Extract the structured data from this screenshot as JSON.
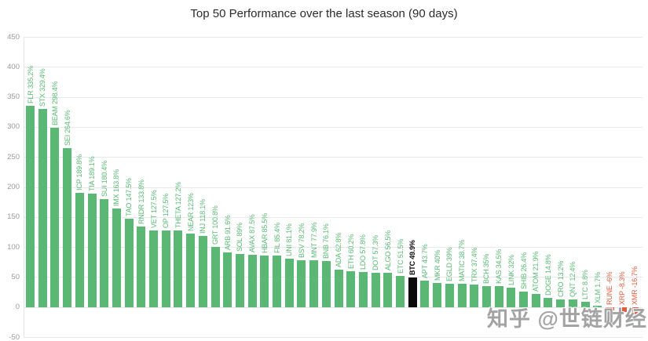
{
  "watermark": "知乎 @世链财经",
  "colors": {
    "positive_bar": "#5ab874",
    "negative_bar": "#df5c3e",
    "highlight_bar": "#0b0b0b",
    "grid_line": "#e9e9e9",
    "axis_text": "#9a9a9a",
    "title_text": "#2b2b2b",
    "background": "#ffffff"
  },
  "chart_data": {
    "type": "bar",
    "title": "Top 50 Performance over the last season (90 days)",
    "xlabel": "",
    "ylabel": "",
    "unit": "%",
    "ylim": [
      -50,
      450
    ],
    "yticks": [
      450,
      400,
      350,
      300,
      250,
      200,
      150,
      100,
      50,
      0,
      -50
    ],
    "grid": true,
    "legend": false,
    "highlighted_category": "BTC",
    "bars": [
      {
        "label": "FLR",
        "value": 335.2,
        "display": "FLR 335.2%"
      },
      {
        "label": "STX",
        "value": 329.4,
        "display": "STX 329.4%"
      },
      {
        "label": "BEAM",
        "value": 298.4,
        "display": "BEAM 298.4%"
      },
      {
        "label": "SEI",
        "value": 264.6,
        "display": "SEI 264.6%"
      },
      {
        "label": "ICP",
        "value": 189.8,
        "display": "ICP 189.8%"
      },
      {
        "label": "TIA",
        "value": 189.1,
        "display": "TIA 189.1%"
      },
      {
        "label": "SUI",
        "value": 180.4,
        "display": "SUI 180.4%"
      },
      {
        "label": "IMX",
        "value": 163.8,
        "display": "IMX 163.8%"
      },
      {
        "label": "TAO",
        "value": 147.5,
        "display": "TAO 147.5%"
      },
      {
        "label": "RNDR",
        "value": 133.8,
        "display": "RNDR 133.8%"
      },
      {
        "label": "VET",
        "value": 127.5,
        "display": "VET 127.5%"
      },
      {
        "label": "OP",
        "value": 127.5,
        "display": "OP 127.5%"
      },
      {
        "label": "THETA",
        "value": 127.2,
        "display": "THETA 127.2%"
      },
      {
        "label": "NEAR",
        "value": 123,
        "display": "NEAR 123%"
      },
      {
        "label": "INJ",
        "value": 118.1,
        "display": "INJ 118.1%"
      },
      {
        "label": "GRT",
        "value": 100.8,
        "display": "GRT 100.8%"
      },
      {
        "label": "ARB",
        "value": 91.6,
        "display": "ARB 91.6%"
      },
      {
        "label": "SOL",
        "value": 89,
        "display": "SOL 89%"
      },
      {
        "label": "AVAX",
        "value": 87.5,
        "display": "AVAX 87.5%"
      },
      {
        "label": "HBAR",
        "value": 85.5,
        "display": "HBAR 85.5%"
      },
      {
        "label": "FIL",
        "value": 85.4,
        "display": "FIL 85.4%"
      },
      {
        "label": "UNI",
        "value": 81.1,
        "display": "UNI 81.1%"
      },
      {
        "label": "BSV",
        "value": 78.2,
        "display": "BSV 78.2%"
      },
      {
        "label": "MNT",
        "value": 77.9,
        "display": "MNT 77.9%"
      },
      {
        "label": "BNB",
        "value": 76.1,
        "display": "BNB 76.1%"
      },
      {
        "label": "ADA",
        "value": 62.8,
        "display": "ADA 62.8%"
      },
      {
        "label": "ETH",
        "value": 60.2,
        "display": "ETH 60.2%"
      },
      {
        "label": "LDO",
        "value": 57.8,
        "display": "LDO 57.8%"
      },
      {
        "label": "DOT",
        "value": 57.3,
        "display": "DOT 57.3%"
      },
      {
        "label": "ALGO",
        "value": 56.5,
        "display": "ALGO 56.5%"
      },
      {
        "label": "ETC",
        "value": 51.5,
        "display": "ETC 51.5%"
      },
      {
        "label": "BTC",
        "value": 49.9,
        "display": "BTC 49.9%",
        "highlight": true
      },
      {
        "label": "APT",
        "value": 43.7,
        "display": "APT 43.7%"
      },
      {
        "label": "MKR",
        "value": 40,
        "display": "MKR 40%"
      },
      {
        "label": "EGLD",
        "value": 39,
        "display": "EGLD 39%"
      },
      {
        "label": "MATIC",
        "value": 38.7,
        "display": "MATIC 38.7%"
      },
      {
        "label": "TRX",
        "value": 37.4,
        "display": "TRX 37.4%"
      },
      {
        "label": "BCH",
        "value": 35,
        "display": "BCH 35%"
      },
      {
        "label": "KAS",
        "value": 34.5,
        "display": "KAS 34.5%"
      },
      {
        "label": "LINK",
        "value": 32,
        "display": "LINK 32%"
      },
      {
        "label": "SHIB",
        "value": 26.4,
        "display": "SHIB 26.4%"
      },
      {
        "label": "ATOM",
        "value": 21.9,
        "display": "ATOM 21.9%"
      },
      {
        "label": "DOGE",
        "value": 14.8,
        "display": "DOGE 14.8%"
      },
      {
        "label": "CRO",
        "value": 13.2,
        "display": "CRO 13.2%"
      },
      {
        "label": "QNT",
        "value": 12.4,
        "display": "QNT 12.4%"
      },
      {
        "label": "LTC",
        "value": 8.8,
        "display": "LTC 8.8%"
      },
      {
        "label": "XLM",
        "value": 1.7,
        "display": "XLM 1.7%"
      },
      {
        "label": "RUNE",
        "value": -6,
        "display": "RUNE -6%"
      },
      {
        "label": "XRP",
        "value": -8.3,
        "display": "XRP -8.3%"
      },
      {
        "label": "XMR",
        "value": -16.7,
        "display": "XMR -16.7%"
      }
    ]
  }
}
